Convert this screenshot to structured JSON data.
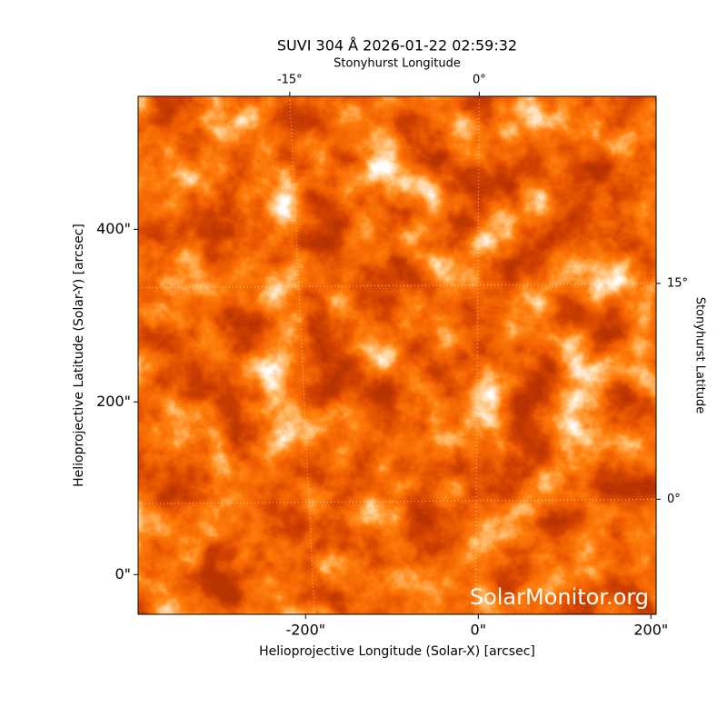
{
  "chart_data": {
    "type": "image",
    "title": "SUVI 304 Å 2026-01-22 02:59:32",
    "xlabel": "Helioprojective Longitude (Solar-X) [arcsec]",
    "ylabel": "Helioprojective Latitude (Solar-Y) [arcsec]",
    "x2label": "Stonyhurst Longitude",
    "y2label": "Stonyhurst Latitude",
    "xlim": [
      -394,
      206
    ],
    "ylim": [
      -46,
      554
    ],
    "xticks": [
      {
        "value": -200,
        "label": "-200\""
      },
      {
        "value": 0,
        "label": "0\""
      },
      {
        "value": 200,
        "label": "200\""
      }
    ],
    "yticks": [
      {
        "value": 0,
        "label": "0\""
      },
      {
        "value": 200,
        "label": "200\""
      },
      {
        "value": 400,
        "label": "400\""
      }
    ],
    "x2lim": [
      -27,
      14
    ],
    "x2ticks": [
      {
        "value": -15,
        "label": "-15°"
      },
      {
        "value": 0,
        "label": "0°"
      }
    ],
    "y2lim": [
      -8,
      28
    ],
    "y2ticks": [
      {
        "value": 0,
        "label": "0°"
      },
      {
        "value": 15,
        "label": "15°"
      }
    ],
    "grid": true,
    "watermark": "SolarMonitor.org"
  }
}
